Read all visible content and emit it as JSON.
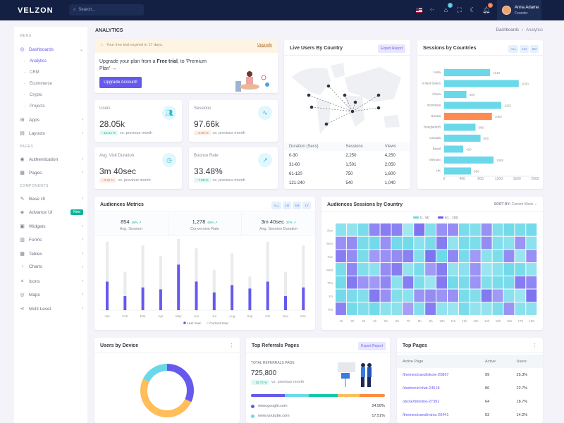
{
  "topbar": {
    "logo": "VELZON",
    "search_placeholder": "Search...",
    "cart_badge": "5",
    "notif_badge": "3",
    "user_name": "Anna Adame",
    "user_role": "Founder"
  },
  "sidebar": {
    "menu_label": "MENU",
    "pages_label": "PAGES",
    "components_label": "COMPONENTS",
    "dashboards": "Dashboards",
    "subs": [
      "Analytics",
      "CRM",
      "Ecommerce",
      "Crypto",
      "Projects"
    ],
    "items": [
      {
        "label": "Apps",
        "icon": "apps-icon"
      },
      {
        "label": "Layouts",
        "icon": "layout-icon"
      }
    ],
    "pages": [
      {
        "label": "Authentication",
        "icon": "user-circle-icon"
      },
      {
        "label": "Pages",
        "icon": "pages-icon"
      }
    ],
    "components": [
      {
        "label": "Base UI",
        "icon": "pencil-ruler-icon"
      },
      {
        "label": "Advance UI",
        "icon": "stack-icon",
        "badge": "New"
      },
      {
        "label": "Widgets",
        "icon": "widgets-icon"
      },
      {
        "label": "Forms",
        "icon": "file-list-icon"
      },
      {
        "label": "Tables",
        "icon": "table-icon"
      },
      {
        "label": "Charts",
        "icon": "pie-chart-icon"
      },
      {
        "label": "Icons",
        "icon": "compasses-icon"
      },
      {
        "label": "Maps",
        "icon": "map-pin-icon"
      },
      {
        "label": "Multi Level",
        "icon": "share-icon"
      }
    ]
  },
  "page": {
    "title": "ANALYTICS",
    "breadcrumb": [
      "Dashboards",
      "Analytics"
    ]
  },
  "trial": {
    "alert": "Your free trial expired in 17 days.",
    "upgrade_link": "Upgrade",
    "text_a": "Upgrade your plan from a ",
    "text_bold": "Free trial",
    "text_b": ", to 'Premium Plan' →",
    "button": "Upgrade Account!"
  },
  "stats": [
    {
      "label": "Users",
      "value": "28.05k",
      "change": "↑ 16.24 %",
      "dir": "up",
      "note": "vs. previous month",
      "icon": "users-icon"
    },
    {
      "label": "Sessions",
      "value": "97.66k",
      "change": "↓ 3.96 %",
      "dir": "dn",
      "note": "vs. previous month",
      "icon": "activity-icon"
    },
    {
      "label": "Avg. Visit Duration",
      "value": "3m 40sec",
      "change": "↓ 0.24 %",
      "dir": "dn",
      "note": "vs. previous month",
      "icon": "clock-icon"
    },
    {
      "label": "Bounce Rate",
      "value": "33.48%",
      "change": "↑ 7.05 %",
      "dir": "up",
      "note": "vs. previous month",
      "icon": "external-link-icon"
    }
  ],
  "live": {
    "title": "Live Users By Country",
    "export": "Export Report",
    "headers": [
      "Duration (Secs)",
      "Sessions",
      "Views"
    ],
    "rows": [
      [
        "0-30",
        "2,250",
        "4,250"
      ],
      [
        "31-60",
        "1,501",
        "2,050"
      ],
      [
        "61-120",
        "750",
        "1,600"
      ],
      [
        "121-240",
        "540",
        "1,040"
      ]
    ]
  },
  "sessions_country": {
    "title": "Sessions by Countries",
    "filters": [
      "ALL",
      "1M",
      "6M"
    ]
  },
  "audience": {
    "title": "Audiences Metrics",
    "filters": [
      "ALL",
      "1M",
      "6M",
      "1Y"
    ],
    "metrics": [
      {
        "value": "854",
        "pct": "49% ↗",
        "label": "Avg. Session"
      },
      {
        "value": "1,278",
        "pct": "60% ↗",
        "label": "Conversion Rate"
      },
      {
        "value": "3m 40sec",
        "pct": "37% ↗",
        "label": "Avg. Session Duration"
      }
    ]
  },
  "heatmap_card": {
    "title": "Audiences Sessions by Country",
    "sort_label": "SORT BY:",
    "sort_value": "Current Week"
  },
  "device": {
    "title": "Users by Device"
  },
  "referrals": {
    "title": "Top Referrals Pages",
    "export": "Export Report",
    "total_label": "TOTAL REFERRALS PAGE",
    "total": "725,800",
    "change": "↑ 15.72 %",
    "note": "vs. previous month",
    "bar": [
      {
        "color": "#6559ee",
        "pct": 25
      },
      {
        "color": "#6ad8e8",
        "pct": 18
      },
      {
        "color": "#17c7a4",
        "pct": 22
      },
      {
        "color": "#ffbe5a",
        "pct": 16
      },
      {
        "color": "#ff8a40",
        "pct": 19
      }
    ],
    "sources": [
      {
        "name": "www.google.com",
        "value": "24.58%",
        "color": "#6559ee"
      },
      {
        "name": "www.youtube.com",
        "value": "17.51%",
        "color": "#6ad8e8"
      }
    ]
  },
  "top_pages": {
    "title": "Top Pages",
    "headers": [
      "Active Page",
      "Active",
      "Users"
    ],
    "rows": [
      [
        "/themesbrand/skote-25867",
        "99",
        "25.3%"
      ],
      [
        "/dashonic/chat-24518",
        "86",
        "22.7%"
      ],
      [
        "/skote/timeline-27391",
        "64",
        "18.7%"
      ],
      [
        "/themesbrand/minia-26441",
        "53",
        "14.2%"
      ]
    ]
  },
  "chart_data": [
    {
      "type": "bar",
      "orientation": "horizontal",
      "categories": [
        "India",
        "United States",
        "China",
        "Indonesia",
        "Russia",
        "Bangladesh",
        "Canada",
        "Brazil",
        "Vietnam",
        "UK"
      ],
      "values": [
        1010,
        1640,
        490,
        1255,
        1050,
        689,
        800,
        420,
        1085,
        589
      ],
      "highlight": "Russia",
      "xlim": [
        0,
        2000
      ],
      "xticks": [
        0,
        400,
        800,
        1200,
        1600,
        2000
      ],
      "colors": {
        "default": "#6ad8e8",
        "highlight": "#ff8a50"
      }
    },
    {
      "type": "bar",
      "stacked": true,
      "categories": [
        "Jan",
        "Feb",
        "Mar",
        "Apr",
        "May",
        "Jun",
        "Jul",
        "Aug",
        "Sep",
        "Oct",
        "Nov",
        "Dec"
      ],
      "series": [
        {
          "name": "Last Year",
          "color": "#6559ee",
          "values": [
            25.3,
            12.5,
            20.2,
            18.5,
            40.4,
            25.4,
            15.8,
            22.3,
            19.2,
            25.3,
            12.5,
            20.2
          ]
        },
        {
          "name": "Current Year",
          "color": "#e9ebec",
          "values": [
            35.5,
            21.6,
            37.2,
            29.7,
            25.1,
            29.4,
            19.9,
            28.6,
            10.7,
            35.5,
            21.6,
            37.2
          ]
        }
      ]
    },
    {
      "type": "heatmap",
      "rows": [
        "Sun",
        "Mon",
        "Tue",
        "Wed",
        "Thu",
        "Fri",
        "Sat"
      ],
      "columns": [
        "1h",
        "2h",
        "3h",
        "4h",
        "5h",
        "6h",
        "7h",
        "8h",
        "9h",
        "10h",
        "11h",
        "12h",
        "13h",
        "14h",
        "15h",
        "16h",
        "17h",
        "18h"
      ],
      "legend": [
        {
          "name": "0 - 50",
          "color": "#6ad8e8"
        },
        {
          "name": "51 - 100",
          "color": "#6559ee"
        }
      ],
      "values": [
        [
          30,
          25,
          40,
          75,
          80,
          78,
          15,
          85,
          35,
          70,
          72,
          40,
          35,
          70,
          35,
          45,
          40,
          45
        ],
        [
          70,
          72,
          40,
          45,
          70,
          45,
          45,
          30,
          40,
          80,
          25,
          40,
          38,
          72,
          35,
          30,
          68,
          30
        ],
        [
          80,
          72,
          40,
          65,
          70,
          72,
          78,
          35,
          85,
          48,
          75,
          40,
          65,
          30,
          38,
          72,
          20,
          70
        ],
        [
          40,
          75,
          35,
          30,
          72,
          80,
          25,
          40,
          65,
          80,
          25,
          30,
          68,
          20,
          30,
          45,
          40,
          25
        ],
        [
          45,
          82,
          68,
          65,
          75,
          30,
          80,
          38,
          20,
          82,
          45,
          40,
          68,
          35,
          40,
          40,
          80,
          75
        ],
        [
          45,
          40,
          35,
          82,
          70,
          35,
          30,
          68,
          72,
          68,
          70,
          40,
          35,
          82,
          65,
          30,
          20,
          85
        ],
        [
          78,
          45,
          35,
          45,
          30,
          30,
          62,
          35,
          80,
          25,
          20,
          40,
          25,
          25,
          38,
          68,
          30,
          30
        ]
      ]
    },
    {
      "type": "pie",
      "donut": true,
      "values": [
        32,
        50,
        18
      ],
      "colors": [
        "#6559ee",
        "#ffbe5a",
        "#6ad8e8"
      ]
    }
  ]
}
